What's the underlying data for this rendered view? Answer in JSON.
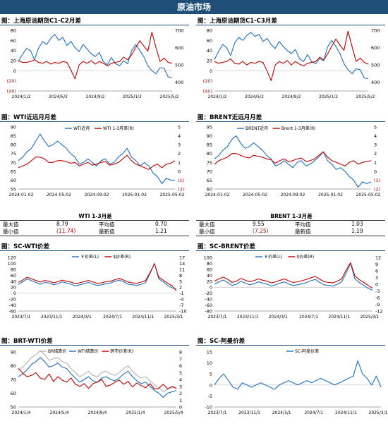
{
  "banner": "原油市场",
  "colors": {
    "blue": "#1f6fbf",
    "red": "#c00000",
    "gray": "#b4b4b4",
    "banner": "#1f4e79"
  },
  "tables": [
    {
      "title": "WTI 1-3月差",
      "rows": [
        {
          "l1": "最大值",
          "v1": "8.79",
          "l2": "平均值",
          "v2": "0.70"
        },
        {
          "l1": "最小值",
          "v1": "(11.74)",
          "l2": "最新值",
          "v2": "1.21"
        }
      ]
    },
    {
      "title": "BRENT 1-3月差",
      "rows": [
        {
          "l1": "最大值",
          "v1": "9.55",
          "l2": "平均值",
          "v2": "1.03"
        },
        {
          "l1": "最小值",
          "v1": "(7.25)",
          "l2": "最新值",
          "v2": "1.19"
        }
      ]
    }
  ],
  "chart_data": [
    {
      "panel_title": "图：上海原油期货C1-C2月差",
      "type": "line",
      "x_ticks": [
        "2024/1/2",
        "2024/5/2",
        "2024/9/2",
        "2025/1/2",
        "2025/5/2"
      ],
      "y_ticks": [
        "80",
        "60",
        "40",
        "20",
        "0",
        "(20)",
        "(40)"
      ],
      "ylim": [
        -40,
        80
      ],
      "y2_ticks": [
        "700",
        "600",
        "500",
        "400"
      ],
      "y2lim": [
        350,
        700
      ],
      "series": [
        {
          "axis": "left",
          "color": "blue",
          "values": [
            18,
            32,
            44,
            40,
            22,
            45,
            58,
            52,
            64,
            72,
            60,
            66,
            50,
            58,
            46,
            38,
            52,
            43,
            34,
            28,
            36,
            18,
            12,
            26,
            14,
            10,
            20,
            14,
            40,
            52,
            40,
            28,
            10,
            0,
            -6,
            6,
            5,
            -12,
            -14
          ]
        },
        {
          "axis": "right",
          "color": "red",
          "values": [
            525,
            515,
            515,
            520,
            530,
            515,
            510,
            520,
            505,
            515,
            510,
            520,
            515,
            470,
            420,
            500,
            520,
            510,
            525,
            505,
            520,
            510,
            495,
            510,
            515,
            520,
            545,
            530,
            560,
            600,
            640,
            610,
            580,
            690,
            600,
            520,
            540,
            515,
            510
          ]
        }
      ]
    },
    {
      "panel_title": "图：上海原油期货C1-C3月差",
      "type": "line",
      "x_ticks": [
        "2024/1/2",
        "2024/5/2",
        "2024/9/2",
        "2025/1/2",
        "2025/5/2"
      ],
      "y_ticks": [
        "80",
        "60",
        "40",
        "20",
        "0",
        "(20)",
        "(40)"
      ],
      "ylim": [
        -40,
        80
      ],
      "y2_ticks": [
        "700",
        "600",
        "500",
        "400"
      ],
      "y2lim": [
        350,
        700
      ],
      "series": [
        {
          "axis": "left",
          "color": "blue",
          "values": [
            22,
            38,
            52,
            46,
            30,
            55,
            66,
            60,
            70,
            76,
            68,
            72,
            58,
            64,
            52,
            44,
            58,
            48,
            40,
            34,
            42,
            24,
            18,
            32,
            18,
            14,
            24,
            20,
            48,
            60,
            48,
            34,
            14,
            2,
            -6,
            4,
            2,
            -14,
            -16
          ]
        },
        {
          "axis": "right",
          "color": "red",
          "values": [
            520,
            510,
            515,
            520,
            535,
            510,
            505,
            520,
            500,
            515,
            510,
            520,
            515,
            465,
            410,
            500,
            520,
            510,
            525,
            500,
            520,
            505,
            495,
            510,
            515,
            520,
            545,
            530,
            565,
            610,
            650,
            615,
            585,
            695,
            605,
            520,
            540,
            515,
            505
          ]
        }
      ]
    },
    {
      "panel_title": "图：WTI近远月月差",
      "type": "line",
      "x_ticks": [
        "2024-01-02",
        "2024-05-02",
        "2024-09-02",
        "2025-01-02",
        "2025-05-02"
      ],
      "y_ticks": [
        "90",
        "85",
        "80",
        "75",
        "70",
        "65",
        "60",
        "55"
      ],
      "ylim": [
        55,
        90
      ],
      "y2_ticks": [
        "5",
        "4",
        "3",
        "2",
        "1",
        "0",
        "(1)",
        "(2)"
      ],
      "y2lim": [
        -2,
        5
      ],
      "series": [
        {
          "name": "WTI近月",
          "axis": "left",
          "color": "blue",
          "values": [
            71,
            73,
            76,
            78,
            82,
            86,
            82,
            79,
            80,
            82,
            80,
            78,
            75,
            73,
            69,
            70,
            72,
            70,
            68,
            71,
            72,
            69,
            70,
            73,
            75,
            78,
            73,
            71,
            68,
            70,
            68,
            64,
            62,
            58,
            61,
            60,
            60
          ]
        },
        {
          "name": "WTI 1-3月差(R)",
          "axis": "right",
          "color": "red",
          "values": [
            0.4,
            0.6,
            0.8,
            1.2,
            1.6,
            1.6,
            1.4,
            1.0,
            1.0,
            1.2,
            1.2,
            1.1,
            0.9,
            1.0,
            0.6,
            0.8,
            1.0,
            0.7,
            0.8,
            1.0,
            1.1,
            0.7,
            0.8,
            1.0,
            1.4,
            1.8,
            1.2,
            0.8,
            0.6,
            0.4,
            0.2,
            0.6,
            0.8,
            0.4,
            0.8,
            0.9,
            1.2
          ]
        }
      ]
    },
    {
      "panel_title": "图：BRENT近远月月差",
      "type": "line",
      "x_ticks": [
        "2024-01-02",
        "2024-05-02",
        "2024-09-02",
        "2025-01-02",
        "2025-05-02"
      ],
      "y_ticks": [
        "95",
        "90",
        "85",
        "80",
        "75",
        "70",
        "65",
        "60"
      ],
      "ylim": [
        60,
        95
      ],
      "y2_ticks": [
        "5",
        "4",
        "3",
        "2",
        "1",
        "0",
        "(1)",
        "(2)"
      ],
      "y2lim": [
        -2,
        5
      ],
      "series": [
        {
          "name": "BRENT近月",
          "axis": "left",
          "color": "blue",
          "values": [
            77,
            79,
            82,
            84,
            88,
            90,
            86,
            83,
            84,
            86,
            84,
            82,
            79,
            77,
            73,
            74,
            76,
            74,
            72,
            75,
            76,
            73,
            74,
            76,
            78,
            81,
            76,
            74,
            71,
            72,
            70,
            67,
            65,
            61,
            64,
            63,
            64
          ]
        },
        {
          "name": "Brent 1-3月差(R)",
          "axis": "right",
          "color": "red",
          "values": [
            0.8,
            1.2,
            1.4,
            1.6,
            2.0,
            2.0,
            1.8,
            1.6,
            1.5,
            1.8,
            1.7,
            1.6,
            1.4,
            1.3,
            0.9,
            1.2,
            1.4,
            1.1,
            1.2,
            1.4,
            1.5,
            1.1,
            1.2,
            1.4,
            1.8,
            2.2,
            1.6,
            1.2,
            1.0,
            0.8,
            0.6,
            1.0,
            1.2,
            0.8,
            1.0,
            1.1,
            1.2
          ]
        }
      ]
    },
    {
      "panel_title": "图：SC-WTI价差",
      "type": "line",
      "x_ticks": [
        "2023/7/1",
        "2023/11/1",
        "2024/3/1",
        "2024/7/1",
        "2024/11/1",
        "2025/3/1"
      ],
      "y_ticks": [
        "120",
        "100",
        "80",
        "60",
        "40",
        "20",
        "0",
        "-20",
        "-40",
        "-60"
      ],
      "ylim": [
        -60,
        120
      ],
      "y2_ticks": [
        "17",
        "14",
        "11",
        "8",
        "5",
        "2",
        "-1",
        "-4",
        "-7",
        "-10"
      ],
      "y2lim": [
        -10,
        17
      ],
      "series": [
        {
          "name": "￥价差(L)",
          "axis": "left",
          "color": "blue",
          "values": [
            30,
            38,
            48,
            42,
            36,
            30,
            36,
            34,
            28,
            32,
            38,
            34,
            30,
            24,
            28,
            32,
            36,
            30,
            26,
            28,
            32,
            34,
            40,
            44,
            38,
            30,
            28,
            26,
            30,
            36,
            66,
            100,
            48,
            38,
            26,
            18,
            14
          ]
        },
        {
          "name": "$价差(R)",
          "axis": "right",
          "color": "red",
          "values": [
            4.5,
            5.6,
            7.0,
            6.2,
            5.4,
            4.6,
            5.4,
            5.0,
            4.2,
            4.8,
            5.6,
            5.0,
            4.6,
            3.8,
            4.2,
            4.8,
            5.4,
            4.6,
            4.0,
            4.2,
            4.8,
            5.0,
            5.8,
            6.4,
            5.6,
            4.6,
            4.2,
            4.0,
            4.6,
            5.4,
            9.4,
            13.8,
            7.0,
            5.6,
            4.0,
            2.8,
            0.2
          ]
        }
      ]
    },
    {
      "panel_title": "图：SC-BRENT价差",
      "type": "line",
      "x_ticks": [
        "2023/7/1",
        "2023/11/1",
        "2024/3/1",
        "2024/7/1",
        "2024/11/1",
        "2025/3/1"
      ],
      "y_ticks": [
        "100",
        "80",
        "60",
        "40",
        "20",
        "0",
        "-20",
        "-40",
        "-60",
        "-80"
      ],
      "ylim": [
        -80,
        100
      ],
      "y2_ticks": [
        "12",
        "9",
        "6",
        "3",
        "0",
        "-3",
        "-6",
        "-9",
        "-12"
      ],
      "y2lim": [
        -12,
        12
      ],
      "series": [
        {
          "name": "￥价差(L)",
          "axis": "left",
          "color": "blue",
          "values": [
            10,
            18,
            24,
            16,
            6,
            10,
            20,
            14,
            8,
            12,
            18,
            14,
            10,
            4,
            8,
            14,
            18,
            10,
            6,
            8,
            12,
            16,
            22,
            26,
            16,
            8,
            6,
            4,
            10,
            18,
            48,
            80,
            28,
            16,
            6,
            -4,
            -10
          ]
        },
        {
          "name": "$价差(R)",
          "axis": "right",
          "color": "red",
          "values": [
            1.4,
            2.4,
            3.2,
            2.2,
            0.8,
            1.4,
            2.6,
            1.8,
            1.1,
            1.6,
            2.4,
            1.8,
            1.4,
            0.6,
            1.1,
            1.8,
            2.4,
            1.4,
            0.8,
            1.1,
            1.6,
            2.2,
            2.9,
            3.5,
            2.2,
            1.1,
            0.8,
            0.6,
            1.4,
            2.4,
            6.4,
            9.6,
            3.7,
            2.1,
            0.8,
            -0.5,
            -1.8
          ]
        }
      ]
    },
    {
      "panel_title": "图：BRT-WTI价差",
      "type": "line",
      "x_ticks": [
        "2024/1/4",
        "2024/5/4",
        "2024/9/4",
        "2025/1/4",
        "2025/5/4"
      ],
      "y_ticks": [
        "90",
        "80",
        "70",
        "60",
        "50"
      ],
      "ylim": [
        50,
        90
      ],
      "y2_ticks": [
        "8",
        "7",
        "6",
        "5",
        "4",
        "3",
        "2",
        "1",
        "0"
      ],
      "y2lim": [
        0,
        8
      ],
      "series": [
        {
          "name": "BR结算价",
          "axis": "left",
          "color": "gray",
          "values": [
            77,
            79,
            82,
            86,
            88,
            91,
            88,
            84,
            85,
            86,
            83,
            82,
            78,
            75,
            72,
            74,
            76,
            73,
            72,
            75,
            76,
            74,
            73,
            75,
            78,
            80,
            76,
            73,
            71,
            72,
            69,
            66,
            64,
            61,
            63,
            64,
            64
          ]
        },
        {
          "name": "WTI结算价",
          "axis": "left",
          "color": "blue",
          "values": [
            72,
            74,
            77,
            81,
            83,
            86,
            83,
            79,
            80,
            82,
            79,
            78,
            74,
            71,
            68,
            70,
            72,
            69,
            68,
            71,
            72,
            70,
            69,
            71,
            74,
            76,
            72,
            69,
            67,
            68,
            65,
            62,
            60,
            57,
            60,
            61,
            62
          ]
        },
        {
          "name": "跨市价差(R)",
          "axis": "right",
          "color": "red",
          "values": [
            5.6,
            4.9,
            4.4,
            4.6,
            5.0,
            4.2,
            4.0,
            4.8,
            3.7,
            4.4,
            3.9,
            3.6,
            4.2,
            3.3,
            3.0,
            3.4,
            2.7,
            3.4,
            3.6,
            4.0,
            3.0,
            3.2,
            3.6,
            3.9,
            3.3,
            3.7,
            2.9,
            3.5,
            3.1,
            2.8,
            3.4,
            2.6,
            2.7,
            3.3,
            2.6,
            3.0,
            2.7
          ]
        }
      ]
    },
    {
      "panel_title": "图：SC-阿曼价差",
      "type": "line",
      "x_ticks": [
        "2023/7/1",
        "2023/11/1",
        "2024/3/1",
        "2024/7/1",
        "2024/11/1",
        "2025/3/1"
      ],
      "y_ticks": [
        "15",
        "10",
        "5",
        "0",
        "-5",
        "-10"
      ],
      "ylim": [
        -10,
        15
      ],
      "series": [
        {
          "name": "SC-阿曼价差",
          "axis": "left",
          "color": "blue",
          "values": [
            0,
            3,
            5,
            2,
            -1,
            -2,
            1,
            0,
            -1,
            0,
            1,
            0,
            -1,
            -2,
            0,
            1,
            2,
            1,
            0,
            1,
            2,
            1,
            2,
            3,
            2,
            1,
            0,
            1,
            2,
            3,
            4,
            11,
            5,
            3,
            0,
            4,
            -1
          ]
        }
      ]
    }
  ]
}
